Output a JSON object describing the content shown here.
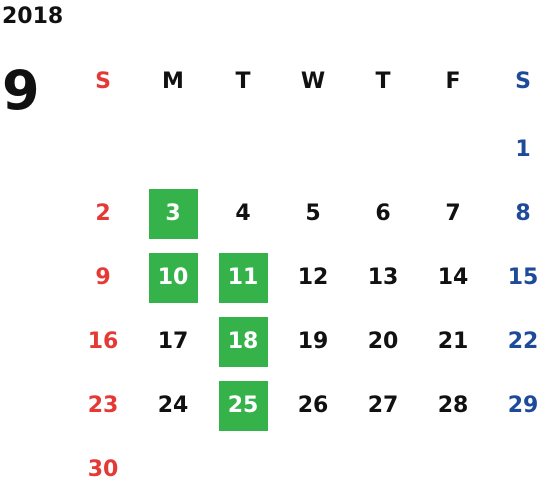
{
  "calendar": {
    "year": "2018",
    "month": "9",
    "weekday_labels": [
      "S",
      "M",
      "T",
      "W",
      "T",
      "F",
      "S"
    ],
    "colors": {
      "sunday": "#e53935",
      "saturday": "#1e4a9a",
      "weekday": "#111111",
      "highlight_bg": "#35b24a",
      "highlight_text": "#ffffff"
    },
    "weeks": [
      [
        "",
        "",
        "",
        "",
        "",
        "",
        "1"
      ],
      [
        "2",
        "3",
        "4",
        "5",
        "6",
        "7",
        "8"
      ],
      [
        "9",
        "10",
        "11",
        "12",
        "13",
        "14",
        "15"
      ],
      [
        "16",
        "17",
        "18",
        "19",
        "20",
        "21",
        "22"
      ],
      [
        "23",
        "24",
        "25",
        "26",
        "27",
        "28",
        "29"
      ],
      [
        "30",
        "",
        "",
        "",
        "",
        "",
        ""
      ]
    ],
    "highlighted_days": [
      "3",
      "10",
      "11",
      "18",
      "25"
    ]
  }
}
